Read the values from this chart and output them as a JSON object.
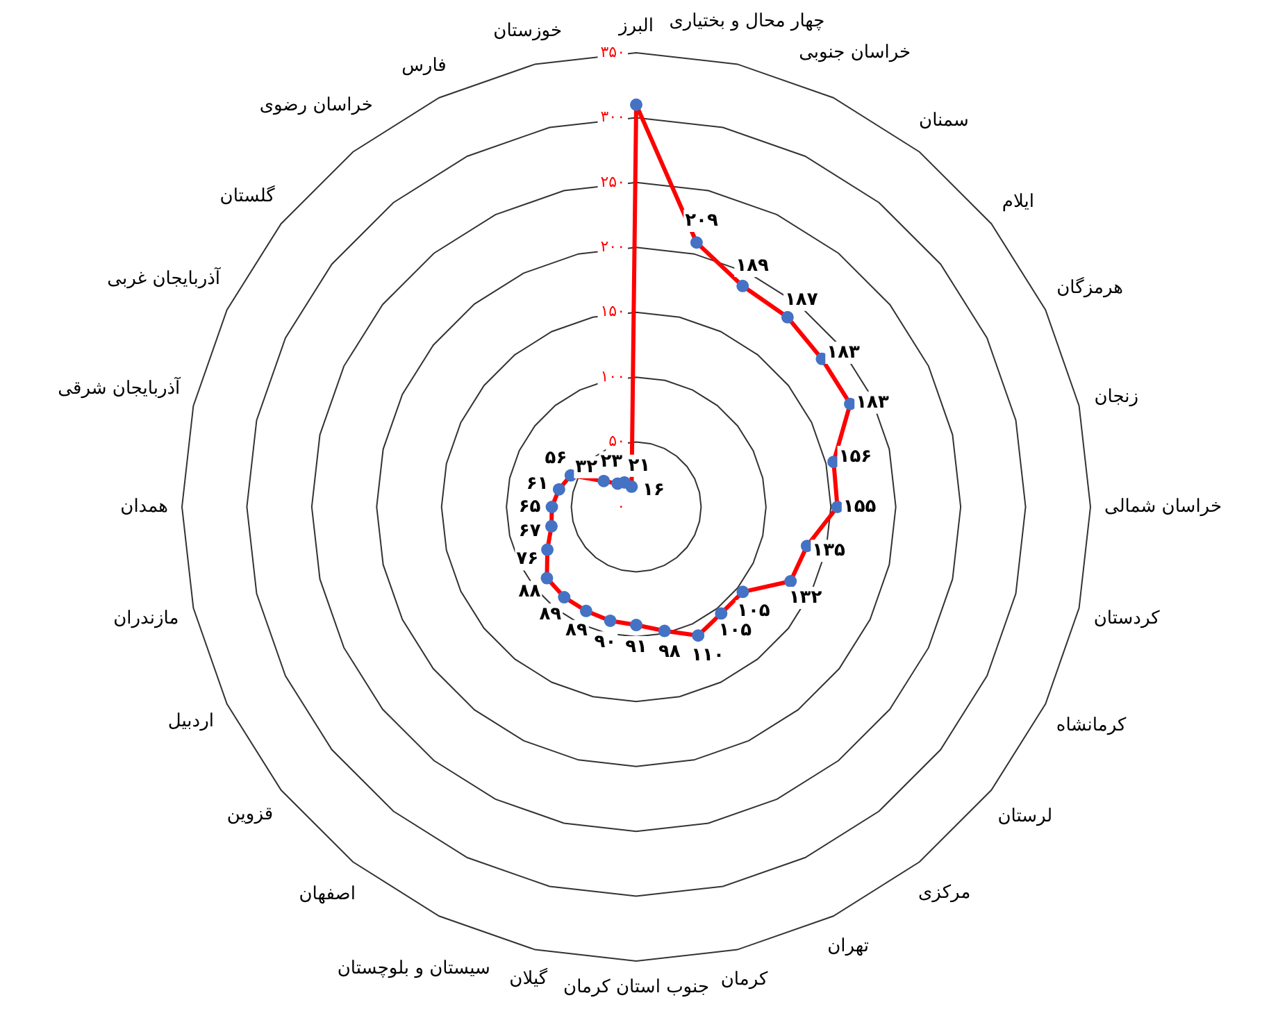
{
  "chart_data": {
    "type": "radar",
    "categories": [
      "البرز",
      "چهار محال و بختیاری",
      "خراسان جنوبی",
      "سمنان",
      "ایلام",
      "هرمزگان",
      "زنجان",
      "خراسان شمالی",
      "کردستان",
      "کرمانشاه",
      "لرستان",
      "مرکزی",
      "تهران",
      "کرمان",
      "جنوب استان کرمان",
      "گیلان",
      "سیستان و بلوچستان",
      "اصفهان",
      "قزوین",
      "اردبیل",
      "مازندران",
      "همدان",
      "آذربایجان شرقی",
      "آذربایجان غربی",
      "گلستان",
      "خراسان رضوی",
      "فارس",
      "خوزستان"
    ],
    "series": [
      {
        "color": "#ff0000",
        "values": [
          310,
          209,
          189,
          187,
          183,
          183,
          156,
          155,
          135,
          132,
          105,
          105,
          110,
          98,
          91,
          90,
          89,
          89,
          88,
          76,
          67,
          65,
          61,
          56,
          32,
          23,
          21,
          16
        ],
        "value_labels": [
          null,
          "۲۰۹",
          "۱۸۹",
          "۱۸۷",
          "۱۸۳",
          "۱۸۳",
          "۱۵۶",
          "۱۵۵",
          "۱۳۵",
          "۱۳۲",
          "۱۰۵",
          "۱۰۵",
          "۱۱۰",
          "۹۸",
          "۹۱",
          "۹۰",
          "۸۹",
          "۸۹",
          "۸۸",
          "۷۶",
          "۶۷",
          "۶۵",
          "۶۱",
          "۵۶",
          "۳۲",
          "۲۳",
          "۲۱",
          "۱۶"
        ]
      }
    ],
    "ylim": [
      0,
      350
    ],
    "yticks": [
      {
        "value": 0,
        "label": "۰"
      },
      {
        "value": 50,
        "label": "۵۰"
      },
      {
        "value": 100,
        "label": "۱۰۰"
      },
      {
        "value": 150,
        "label": "۱۵۰"
      },
      {
        "value": 200,
        "label": "۲۰۰"
      },
      {
        "value": 250,
        "label": "۲۵۰"
      },
      {
        "value": 300,
        "label": "۳۰۰"
      },
      {
        "value": 350,
        "label": "۳۵۰"
      }
    ],
    "grid": true,
    "marker": "circle",
    "line_style": "solid",
    "legend": false
  }
}
